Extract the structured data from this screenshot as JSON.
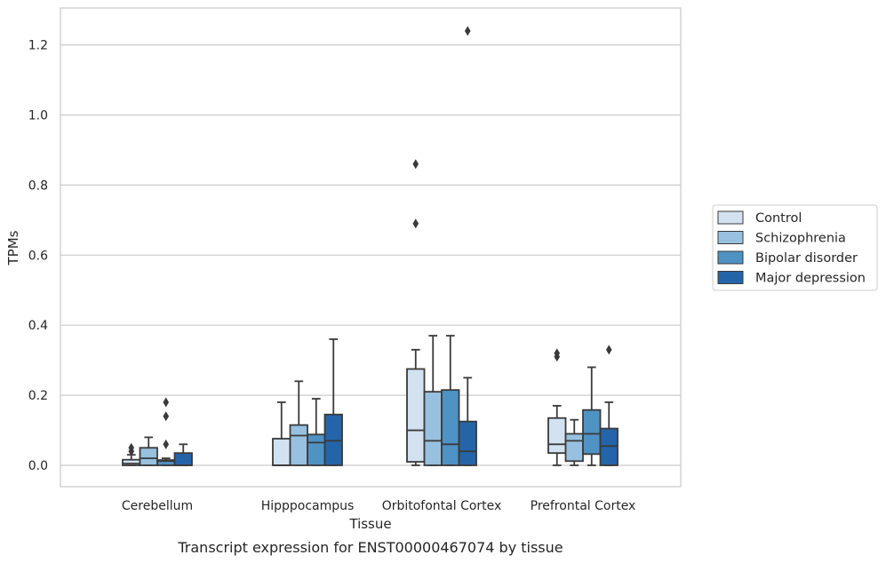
{
  "chart_data": {
    "type": "box",
    "title": "",
    "caption": "Transcript expression for ENST00000467074 by tissue",
    "xlabel": "Tissue",
    "ylabel": "TPMs",
    "ylim": [
      -0.06,
      1.31
    ],
    "yticks": [
      "0.0",
      "0.2",
      "0.4",
      "0.6",
      "0.8",
      "1.0",
      "1.2"
    ],
    "ytick_values": [
      0.0,
      0.2,
      0.4,
      0.6,
      0.8,
      1.0,
      1.2
    ],
    "grid": "horizontal",
    "legend_position": "right",
    "categories": [
      "Cerebellum",
      "Hipppocampus",
      "Orbitofontal Cortex",
      "Prefrontal Cortex"
    ],
    "colors": [
      "#d3e2f1",
      "#97c1df",
      "#4f92c4",
      "#2465a9"
    ],
    "series": [
      {
        "name": "Control",
        "boxes": [
          {
            "whislo": 0.0,
            "q1": 0.0,
            "med": 0.005,
            "q3": 0.016,
            "whishi": 0.03,
            "fliers": [
              0.04,
              0.05
            ]
          },
          {
            "whislo": 0.0,
            "q1": 0.0,
            "med": 0.0,
            "q3": 0.076,
            "whishi": 0.18,
            "fliers": []
          },
          {
            "whislo": 0.0,
            "q1": 0.01,
            "med": 0.1,
            "q3": 0.275,
            "whishi": 0.33,
            "fliers": [
              0.69,
              0.86
            ]
          },
          {
            "whislo": 0.0,
            "q1": 0.035,
            "med": 0.06,
            "q3": 0.135,
            "whishi": 0.17,
            "fliers": [
              0.31,
              0.32
            ]
          }
        ]
      },
      {
        "name": "Schizophrenia",
        "boxes": [
          {
            "whislo": 0.0,
            "q1": 0.0,
            "med": 0.02,
            "q3": 0.05,
            "whishi": 0.08,
            "fliers": []
          },
          {
            "whislo": 0.0,
            "q1": 0.0,
            "med": 0.085,
            "q3": 0.115,
            "whishi": 0.24,
            "fliers": []
          },
          {
            "whislo": 0.0,
            "q1": 0.0,
            "med": 0.07,
            "q3": 0.21,
            "whishi": 0.37,
            "fliers": []
          },
          {
            "whislo": 0.0,
            "q1": 0.012,
            "med": 0.07,
            "q3": 0.09,
            "whishi": 0.13,
            "fliers": []
          }
        ]
      },
      {
        "name": "Bipolar disorder",
        "boxes": [
          {
            "whislo": 0.0,
            "q1": 0.0,
            "med": 0.012,
            "q3": 0.015,
            "whishi": 0.02,
            "fliers": [
              0.06,
              0.14,
              0.18
            ]
          },
          {
            "whislo": 0.0,
            "q1": 0.0,
            "med": 0.065,
            "q3": 0.088,
            "whishi": 0.19,
            "fliers": []
          },
          {
            "whislo": 0.0,
            "q1": 0.0,
            "med": 0.06,
            "q3": 0.215,
            "whishi": 0.37,
            "fliers": []
          },
          {
            "whislo": 0.0,
            "q1": 0.032,
            "med": 0.09,
            "q3": 0.158,
            "whishi": 0.28,
            "fliers": []
          }
        ]
      },
      {
        "name": "Major depression",
        "boxes": [
          {
            "whislo": 0.0,
            "q1": 0.0,
            "med": 0.0,
            "q3": 0.035,
            "whishi": 0.06,
            "fliers": []
          },
          {
            "whislo": 0.0,
            "q1": 0.0,
            "med": 0.07,
            "q3": 0.145,
            "whishi": 0.36,
            "fliers": []
          },
          {
            "whislo": 0.0,
            "q1": 0.0,
            "med": 0.04,
            "q3": 0.125,
            "whishi": 0.25,
            "fliers": [
              1.24
            ]
          },
          {
            "whislo": 0.0,
            "q1": 0.0,
            "med": 0.055,
            "q3": 0.105,
            "whishi": 0.18,
            "fliers": [
              0.33
            ]
          }
        ]
      }
    ]
  }
}
